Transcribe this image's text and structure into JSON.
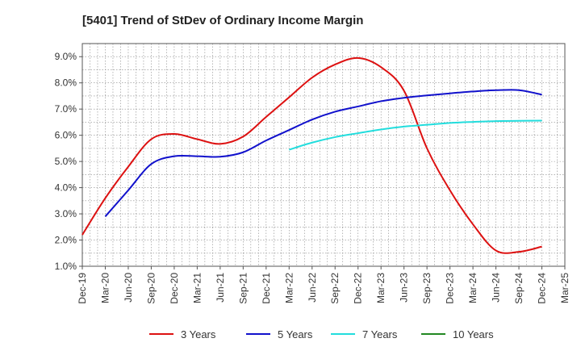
{
  "chart_data": {
    "type": "line",
    "title": "[5401]  Trend of StDev of Ordinary Income Margin",
    "xlabel": "",
    "ylabel": "",
    "x_ticks": [
      "Dec-19",
      "Mar-20",
      "Jun-20",
      "Sep-20",
      "Dec-20",
      "Mar-21",
      "Jun-21",
      "Sep-21",
      "Dec-21",
      "Mar-22",
      "Jun-22",
      "Sep-22",
      "Dec-22",
      "Mar-23",
      "Jun-23",
      "Sep-23",
      "Dec-23",
      "Mar-24",
      "Jun-24",
      "Sep-24",
      "Dec-24",
      "Mar-25"
    ],
    "y_ticks": [
      "1.0%",
      "2.0%",
      "3.0%",
      "4.0%",
      "5.0%",
      "6.0%",
      "7.0%",
      "8.0%",
      "9.0%"
    ],
    "ylim": [
      1.0,
      9.5
    ],
    "grid": true,
    "legend_position": "bottom",
    "series": [
      {
        "name": "3 Years",
        "color": "#dd1111",
        "points": [
          [
            "Dec-19",
            2.2
          ],
          [
            "Mar-20",
            3.6
          ],
          [
            "Jun-20",
            4.8
          ],
          [
            "Sep-20",
            5.85
          ],
          [
            "Dec-20",
            6.05
          ],
          [
            "Mar-21",
            5.85
          ],
          [
            "Jun-21",
            5.67
          ],
          [
            "Sep-21",
            5.95
          ],
          [
            "Dec-21",
            6.7
          ],
          [
            "Mar-22",
            7.45
          ],
          [
            "Jun-22",
            8.2
          ],
          [
            "Sep-22",
            8.7
          ],
          [
            "Dec-22",
            8.95
          ],
          [
            "Mar-23",
            8.6
          ],
          [
            "Jun-23",
            7.7
          ],
          [
            "Sep-23",
            5.5
          ],
          [
            "Dec-23",
            3.9
          ],
          [
            "Mar-24",
            2.6
          ],
          [
            "Jun-24",
            1.6
          ],
          [
            "Sep-24",
            1.55
          ],
          [
            "Dec-24",
            1.75
          ]
        ]
      },
      {
        "name": "5 Years",
        "color": "#1111cc",
        "points": [
          [
            "Mar-20",
            2.9
          ],
          [
            "Jun-20",
            3.9
          ],
          [
            "Sep-20",
            4.9
          ],
          [
            "Dec-20",
            5.2
          ],
          [
            "Mar-21",
            5.2
          ],
          [
            "Jun-21",
            5.18
          ],
          [
            "Sep-21",
            5.35
          ],
          [
            "Dec-21",
            5.8
          ],
          [
            "Mar-22",
            6.2
          ],
          [
            "Jun-22",
            6.6
          ],
          [
            "Sep-22",
            6.9
          ],
          [
            "Dec-22",
            7.1
          ],
          [
            "Mar-23",
            7.3
          ],
          [
            "Jun-23",
            7.43
          ],
          [
            "Sep-23",
            7.52
          ],
          [
            "Dec-23",
            7.6
          ],
          [
            "Mar-24",
            7.67
          ],
          [
            "Jun-24",
            7.72
          ],
          [
            "Sep-24",
            7.72
          ],
          [
            "Dec-24",
            7.55
          ]
        ]
      },
      {
        "name": "7 Years",
        "color": "#22dddd",
        "points": [
          [
            "Mar-22",
            5.45
          ],
          [
            "Jun-22",
            5.72
          ],
          [
            "Sep-22",
            5.93
          ],
          [
            "Dec-22",
            6.08
          ],
          [
            "Mar-23",
            6.22
          ],
          [
            "Jun-23",
            6.33
          ],
          [
            "Sep-23",
            6.4
          ],
          [
            "Dec-23",
            6.47
          ],
          [
            "Mar-24",
            6.51
          ],
          [
            "Jun-24",
            6.54
          ],
          [
            "Sep-24",
            6.55
          ],
          [
            "Dec-24",
            6.56
          ]
        ]
      },
      {
        "name": "10 Years",
        "color": "#228822",
        "points": []
      }
    ]
  }
}
